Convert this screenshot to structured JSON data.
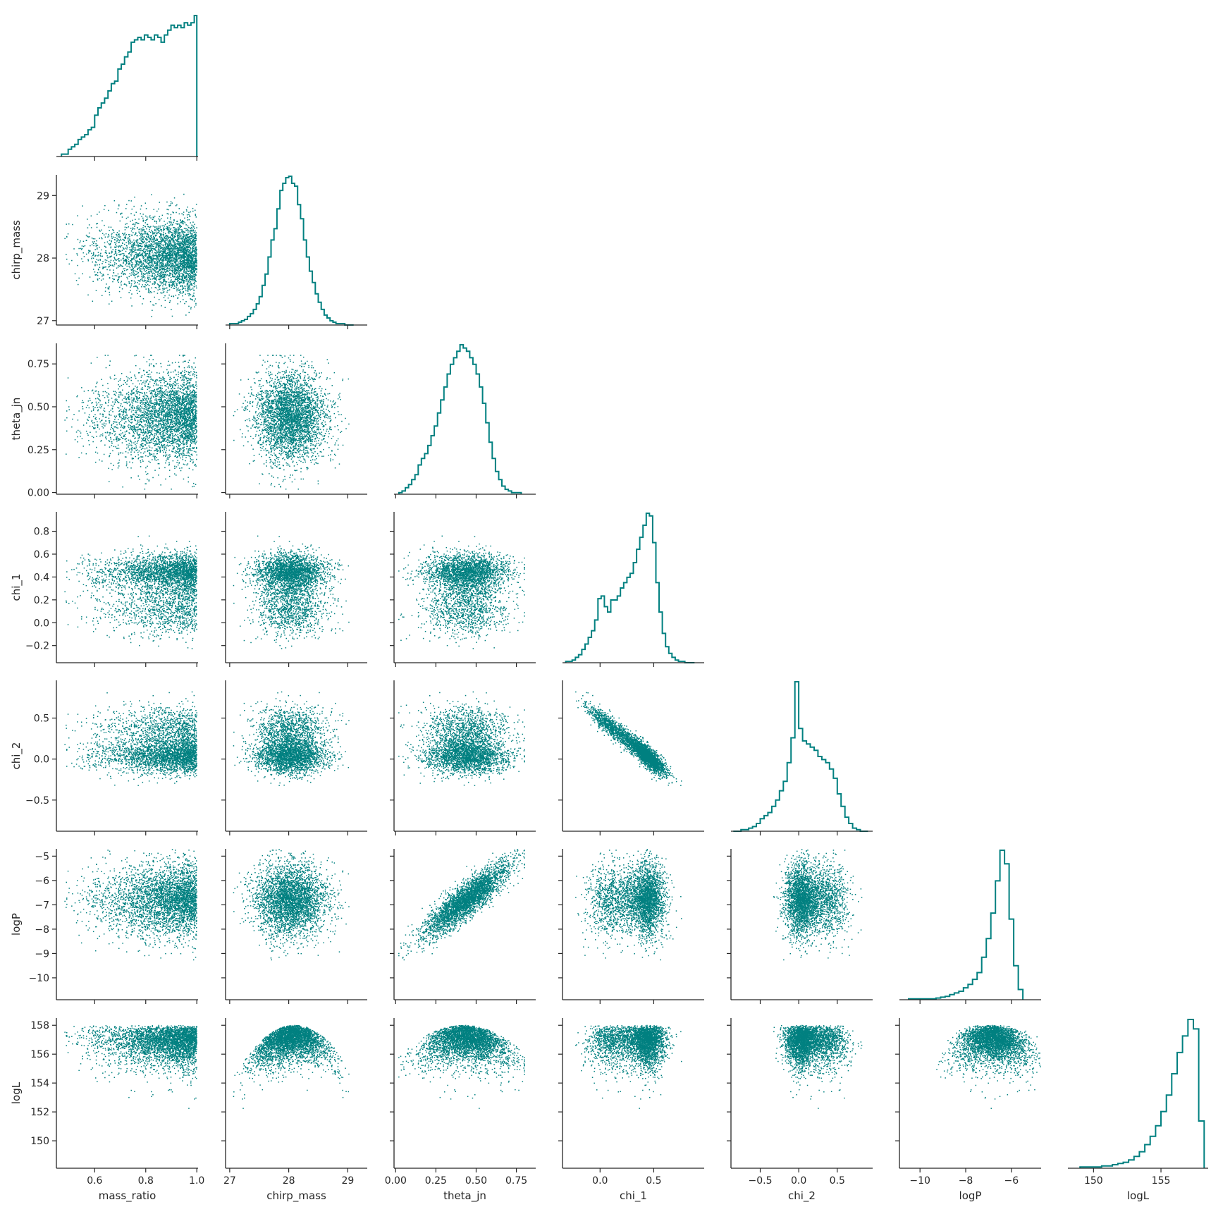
{
  "figure": {
    "accent_color": "#008080",
    "axis_color": "#262626",
    "background": "#ffffff"
  },
  "chart_data": {
    "type": "scatter",
    "subtype": "corner-plot",
    "grid": false,
    "legend": "none",
    "variables": [
      {
        "name": "mass_ratio",
        "label": "mass_ratio",
        "range": [
          0.45,
          1.005
        ],
        "ticks": [
          0.6,
          0.8,
          1.0
        ],
        "tick_labels": [
          "0.6",
          "0.8",
          "1.0"
        ]
      },
      {
        "name": "chirp_mass",
        "label": "chirp_mass",
        "range": [
          26.93,
          29.33
        ],
        "ticks": [
          27,
          28,
          29
        ],
        "tick_labels": [
          "27",
          "28",
          "29"
        ]
      },
      {
        "name": "theta_jn",
        "label": "theta_jn",
        "range": [
          -0.01,
          0.87
        ],
        "ticks": [
          0.0,
          0.25,
          0.5,
          0.75
        ],
        "tick_labels": [
          "0.00",
          "0.25",
          "0.50",
          "0.75"
        ]
      },
      {
        "name": "chi_1",
        "label": "chi_1",
        "range": [
          -0.35,
          0.97
        ],
        "ticks": [
          -0.2,
          0.0,
          0.2,
          0.4,
          0.6,
          0.8
        ],
        "tick_labels": [
          "−0.2",
          "0.0",
          "0.2",
          "0.4",
          "0.6",
          "0.8"
        ],
        "x_ticks": [
          0.0,
          0.5
        ],
        "x_tick_labels": [
          "0.0",
          "0.5"
        ]
      },
      {
        "name": "chi_2",
        "label": "chi_2",
        "range": [
          -0.88,
          0.96
        ],
        "ticks": [
          -0.5,
          0.0,
          0.5
        ],
        "tick_labels": [
          "−0.5",
          "0.0",
          "0.5"
        ]
      },
      {
        "name": "logP",
        "label": "logP",
        "range": [
          -10.9,
          -4.7
        ],
        "ticks": [
          -10,
          -9,
          -8,
          -7,
          -6,
          -5
        ],
        "tick_labels": [
          "−10",
          "−9",
          "−8",
          "−7",
          "−6",
          "−5"
        ],
        "x_ticks": [
          -10,
          -8,
          -6
        ],
        "x_tick_labels": [
          "−10",
          "−8",
          "−6"
        ]
      },
      {
        "name": "logL",
        "label": "logL",
        "range": [
          148.1,
          158.5
        ],
        "ticks": [
          150,
          152,
          154,
          156,
          158
        ],
        "tick_labels": [
          "150",
          "152",
          "154",
          "156",
          "158"
        ],
        "x_ticks": [
          150,
          155
        ],
        "x_tick_labels": [
          "150",
          "155"
        ]
      }
    ],
    "histograms": [
      {
        "variable": "mass_ratio",
        "bin_edges": [
          0.47,
          0.483,
          0.496,
          0.509,
          0.522,
          0.535,
          0.548,
          0.561,
          0.574,
          0.587,
          0.6,
          0.613,
          0.626,
          0.639,
          0.652,
          0.665,
          0.678,
          0.691,
          0.704,
          0.717,
          0.73,
          0.743,
          0.756,
          0.769,
          0.782,
          0.795,
          0.808,
          0.821,
          0.834,
          0.847,
          0.86,
          0.873,
          0.886,
          0.899,
          0.912,
          0.925,
          0.938,
          0.951,
          0.964,
          0.977,
          0.99,
          1.0
        ],
        "counts": [
          1,
          1,
          3,
          4,
          5,
          7,
          8,
          9,
          11,
          12,
          17,
          20,
          22,
          24,
          27,
          30,
          31,
          36,
          38,
          41,
          43,
          47,
          48,
          49,
          48,
          50,
          49,
          48,
          50,
          49,
          47,
          50,
          52,
          54,
          53,
          54,
          53,
          55,
          54,
          55,
          58
        ]
      },
      {
        "variable": "chirp_mass",
        "bin_edges": [
          27.0,
          27.05,
          27.1,
          27.15,
          27.2,
          27.25,
          27.3,
          27.35,
          27.4,
          27.45,
          27.5,
          27.55,
          27.6,
          27.65,
          27.7,
          27.75,
          27.8,
          27.85,
          27.9,
          27.95,
          28.0,
          28.05,
          28.1,
          28.15,
          28.2,
          28.25,
          28.3,
          28.35,
          28.4,
          28.45,
          28.5,
          28.55,
          28.6,
          28.65,
          28.7,
          28.75,
          28.8,
          28.85,
          28.9,
          28.95,
          29.0,
          29.05,
          29.1
        ],
        "counts": [
          1,
          1,
          1,
          2,
          3,
          4,
          6,
          8,
          11,
          15,
          20,
          28,
          36,
          48,
          60,
          68,
          82,
          95,
          100,
          104,
          105,
          100,
          98,
          85,
          75,
          60,
          48,
          38,
          30,
          22,
          16,
          11,
          7,
          5,
          3,
          2,
          1,
          1,
          1,
          0,
          0,
          0
        ]
      },
      {
        "variable": "theta_jn",
        "bin_edges": [
          0.02,
          0.04,
          0.06,
          0.08,
          0.1,
          0.12,
          0.14,
          0.16,
          0.18,
          0.2,
          0.22,
          0.24,
          0.26,
          0.28,
          0.3,
          0.32,
          0.34,
          0.36,
          0.38,
          0.4,
          0.42,
          0.44,
          0.46,
          0.48,
          0.5,
          0.52,
          0.54,
          0.56,
          0.58,
          0.6,
          0.62,
          0.64,
          0.66,
          0.68,
          0.7,
          0.72,
          0.74,
          0.76,
          0.78
        ],
        "counts": [
          1,
          2,
          4,
          6,
          9,
          12,
          18,
          22,
          25,
          30,
          36,
          42,
          50,
          58,
          66,
          74,
          80,
          84,
          88,
          92,
          90,
          88,
          84,
          80,
          74,
          66,
          56,
          44,
          32,
          22,
          14,
          9,
          5,
          3,
          2,
          1,
          1,
          1
        ]
      },
      {
        "variable": "chi_1",
        "bin_edges": [
          -0.32,
          -0.29,
          -0.26,
          -0.23,
          -0.2,
          -0.17,
          -0.14,
          -0.11,
          -0.08,
          -0.05,
          -0.02,
          0.01,
          0.04,
          0.07,
          0.1,
          0.13,
          0.16,
          0.19,
          0.22,
          0.25,
          0.28,
          0.31,
          0.34,
          0.37,
          0.4,
          0.43,
          0.46,
          0.49,
          0.52,
          0.55,
          0.58,
          0.61,
          0.64,
          0.67,
          0.7,
          0.73,
          0.76,
          0.79,
          0.82,
          0.85,
          0.88
        ],
        "counts": [
          1,
          1,
          2,
          4,
          6,
          10,
          14,
          19,
          24,
          32,
          48,
          50,
          42,
          38,
          47,
          47,
          50,
          56,
          60,
          64,
          67,
          75,
          85,
          94,
          103,
          112,
          110,
          90,
          60,
          38,
          22,
          12,
          7,
          4,
          2,
          1,
          1,
          0,
          0,
          0
        ]
      },
      {
        "variable": "chi_2",
        "bin_edges": [
          -0.85,
          -0.8,
          -0.75,
          -0.7,
          -0.65,
          -0.6,
          -0.55,
          -0.5,
          -0.45,
          -0.4,
          -0.35,
          -0.3,
          -0.25,
          -0.2,
          -0.15,
          -0.1,
          -0.05,
          0.0,
          0.05,
          0.1,
          0.15,
          0.2,
          0.25,
          0.3,
          0.35,
          0.4,
          0.45,
          0.5,
          0.55,
          0.6,
          0.65,
          0.7,
          0.75,
          0.8,
          0.85,
          0.9
        ],
        "counts": [
          0,
          0,
          1,
          1,
          2,
          3,
          5,
          8,
          10,
          12,
          16,
          20,
          26,
          32,
          44,
          60,
          96,
          66,
          58,
          56,
          54,
          52,
          48,
          46,
          44,
          40,
          34,
          24,
          16,
          9,
          5,
          2,
          1,
          0,
          0
        ]
      },
      {
        "variable": "logP",
        "bin_edges": [
          -10.5,
          -10.3,
          -10.1,
          -9.9,
          -9.7,
          -9.5,
          -9.3,
          -9.1,
          -8.9,
          -8.7,
          -8.5,
          -8.3,
          -8.1,
          -7.9,
          -7.7,
          -7.5,
          -7.3,
          -7.1,
          -6.9,
          -6.7,
          -6.5,
          -6.3,
          -6.1,
          -5.9,
          -5.7,
          -5.5
        ],
        "counts": [
          1,
          1,
          1,
          1,
          1,
          1,
          2,
          3,
          4,
          6,
          8,
          10,
          14,
          18,
          24,
          32,
          50,
          72,
          102,
          140,
          176,
          160,
          95,
          40,
          12
        ]
      },
      {
        "variable": "logL",
        "bin_edges": [
          149.0,
          149.4,
          149.8,
          150.2,
          150.6,
          151.0,
          151.4,
          151.8,
          152.2,
          152.6,
          153.0,
          153.4,
          153.8,
          154.2,
          154.6,
          155.0,
          155.4,
          155.8,
          156.2,
          156.6,
          157.0,
          157.4,
          157.8,
          158.2
        ],
        "counts": [
          1,
          1,
          1,
          1,
          2,
          2,
          3,
          4,
          5,
          7,
          10,
          14,
          20,
          27,
          36,
          48,
          62,
          80,
          98,
          112,
          126,
          118,
          40
        ]
      }
    ],
    "correlations": [
      {
        "x": "mass_ratio",
        "y": "chirp_mass",
        "trend": "mild negative, widening toward mass_ratio 1.0"
      },
      {
        "x": "chi_1",
        "y": "chi_2",
        "trend": "strong negative linear"
      },
      {
        "x": "theta_jn",
        "y": "logP",
        "trend": "positive"
      },
      {
        "x": "chirp_mass",
        "y": "logL",
        "trend": "dome, peak near 28.1"
      },
      {
        "x": "theta_jn",
        "y": "logL",
        "trend": "dome, peak near 0.42"
      }
    ]
  }
}
